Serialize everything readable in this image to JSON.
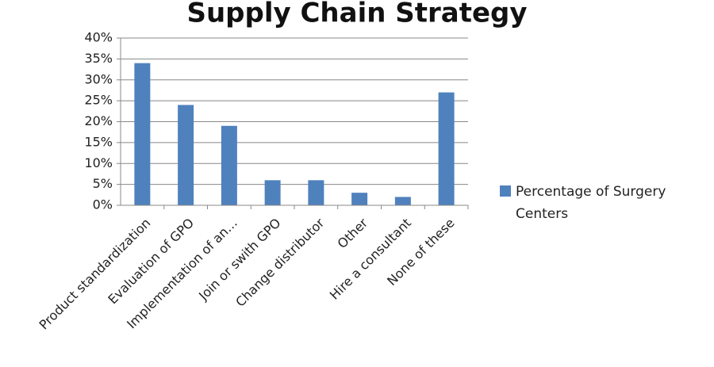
{
  "chart_data": {
    "type": "bar",
    "title": "Supply Chain Strategy",
    "categories": [
      "Product standardization",
      "Evaluation of GPO",
      "Implementation of an…",
      "Join or swith GPO",
      "Change distributor",
      "Other",
      "Hire a consultant",
      "None of these"
    ],
    "series": [
      {
        "name": "Percentage of Surgery Centers",
        "color": "#4f81bd",
        "values": [
          34,
          24,
          19,
          6,
          6,
          3,
          2,
          27
        ]
      }
    ],
    "ylim": [
      0,
      40
    ],
    "yticks": [
      {
        "value": 0,
        "label": "0%"
      },
      {
        "value": 5,
        "label": "5%"
      },
      {
        "value": 10,
        "label": "10%"
      },
      {
        "value": 15,
        "label": "15%"
      },
      {
        "value": 20,
        "label": "20%"
      },
      {
        "value": 25,
        "label": "25%"
      },
      {
        "value": 30,
        "label": "30%"
      },
      {
        "value": 35,
        "label": "35%"
      },
      {
        "value": 40,
        "label": "40%"
      }
    ],
    "grid": true,
    "legend": "right"
  }
}
